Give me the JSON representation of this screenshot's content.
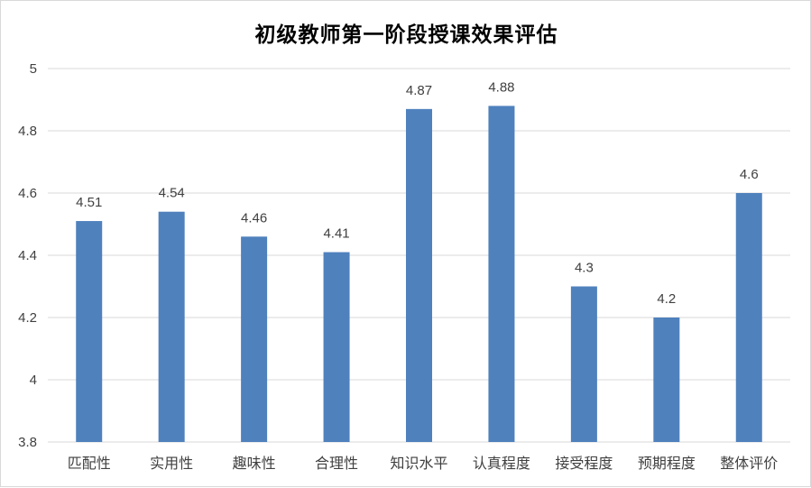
{
  "chart_data": {
    "type": "bar",
    "title": "初级教师第一阶段授课效果评估",
    "xlabel": "",
    "ylabel": "",
    "categories": [
      "匹配性",
      "实用性",
      "趣味性",
      "合理性",
      "知识水平",
      "认真程度",
      "接受程度",
      "预期程度",
      "整体评价"
    ],
    "values": [
      4.51,
      4.54,
      4.46,
      4.41,
      4.87,
      4.88,
      4.3,
      4.2,
      4.6
    ],
    "data_labels": [
      "4.51",
      "4.54",
      "4.46",
      "4.41",
      "4.87",
      "4.88",
      "4.3",
      "4.2",
      "4.6"
    ],
    "ylim": [
      3.8,
      5
    ],
    "yticks": [
      3.8,
      4,
      4.2,
      4.4,
      4.6,
      4.8,
      5
    ],
    "ytick_labels": [
      "3.8",
      "4",
      "4.2",
      "4.4",
      "4.6",
      "4.8",
      "5"
    ],
    "grid": true,
    "legend": "none",
    "bar_color": "#4f81bd",
    "grid_color": "#d9d9d9"
  }
}
